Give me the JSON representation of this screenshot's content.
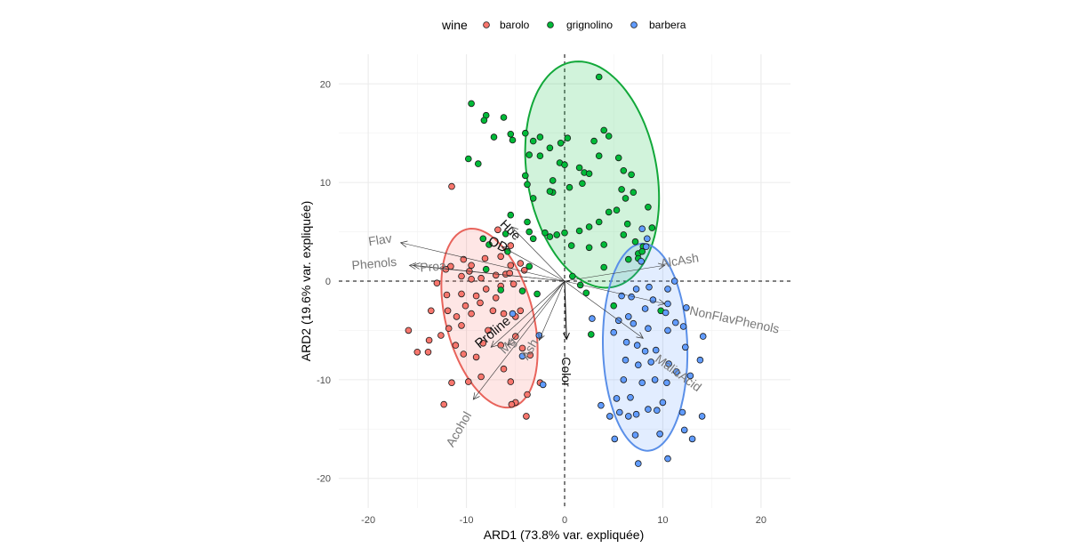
{
  "chart_data": {
    "type": "scatter",
    "xlabel": "ARD1 (73.8% var. expliquée)",
    "ylabel": "ARD2 (19.6% var. expliquée)",
    "xlim": [
      -23,
      23
    ],
    "ylim": [
      -23,
      23
    ],
    "x_ticks": [
      -20,
      -10,
      0,
      10,
      20
    ],
    "y_ticks": [
      -20,
      -10,
      0,
      10,
      20
    ],
    "grid": true,
    "legend": {
      "title": "wine",
      "position": "top"
    },
    "series": [
      {
        "name": "barolo",
        "color": "#F8766D",
        "points": [
          [
            -11.5,
            9.6
          ],
          [
            -6.8,
            5.2
          ],
          [
            -5.5,
            3.6
          ],
          [
            -10.3,
            2.2
          ],
          [
            -11.6,
            1.5
          ],
          [
            -12.1,
            1.2
          ],
          [
            -9.7,
            1.0
          ],
          [
            -9.5,
            1.6
          ],
          [
            -8.1,
            2.3
          ],
          [
            -6.5,
            2.5
          ],
          [
            -10.5,
            0.5
          ],
          [
            -9.5,
            0.2
          ],
          [
            -8.5,
            0.3
          ],
          [
            -13,
            -0.2
          ],
          [
            -7,
            0.6
          ],
          [
            -6.0,
            0.7
          ],
          [
            -5.6,
            0.8
          ],
          [
            -5.5,
            1.6
          ],
          [
            -4.5,
            1.8
          ],
          [
            -4.1,
            1.1
          ],
          [
            -5.2,
            -0.3
          ],
          [
            -6.5,
            -0.5
          ],
          [
            -8,
            -0.8
          ],
          [
            -9,
            -1.5
          ],
          [
            -10.5,
            -1.3
          ],
          [
            -12,
            -1.4
          ],
          [
            -7,
            -1.7
          ],
          [
            -8.6,
            -2.2
          ],
          [
            -10.1,
            -2.5
          ],
          [
            -11.9,
            -3.0
          ],
          [
            -13.6,
            -3.0
          ],
          [
            -11,
            -3.6
          ],
          [
            -9.5,
            -3.3
          ],
          [
            -7.3,
            -3.0
          ],
          [
            -6.2,
            -3.3
          ],
          [
            -5.0,
            -3.6
          ],
          [
            -4.5,
            -3.0
          ],
          [
            -10.5,
            -4.5
          ],
          [
            -11.8,
            -4.8
          ],
          [
            -12.6,
            -5.5
          ],
          [
            -13.8,
            -6.0
          ],
          [
            -15.9,
            -5.0
          ],
          [
            -15,
            -7.2
          ],
          [
            -13.9,
            -7.2
          ],
          [
            -11.1,
            -6.5
          ],
          [
            -10.3,
            -7.4
          ],
          [
            -9.0,
            -7.7
          ],
          [
            -8.3,
            -6.3
          ],
          [
            -7.8,
            -5.0
          ],
          [
            -6.5,
            -6.5
          ],
          [
            -5.0,
            -5.6
          ],
          [
            -4.3,
            -6.8
          ],
          [
            -3.5,
            -7.5
          ],
          [
            -6.2,
            -8.9
          ],
          [
            -8.5,
            -9.7
          ],
          [
            -11.5,
            -10.3
          ],
          [
            -5.5,
            -10.2
          ],
          [
            -2.5,
            -10.3
          ],
          [
            -5.0,
            -12.3
          ],
          [
            -9.8,
            -10.2
          ],
          [
            -3.8,
            -11.5
          ],
          [
            -5.4,
            -12.5
          ],
          [
            -3.9,
            -13.7
          ],
          [
            -12.3,
            -12.5
          ]
        ]
      },
      {
        "name": "grignolino",
        "color": "#00BA38",
        "points": [
          [
            -9.5,
            18.0
          ],
          [
            -8,
            16.8
          ],
          [
            -8.2,
            16.3
          ],
          [
            -6.2,
            16.6
          ],
          [
            -5.5,
            14.9
          ],
          [
            -5.3,
            14.3
          ],
          [
            -7.2,
            14.6
          ],
          [
            -9.8,
            12.4
          ],
          [
            -8.8,
            11.9
          ],
          [
            -4.0,
            15.0
          ],
          [
            -3.2,
            14.2
          ],
          [
            -2.5,
            14.6
          ],
          [
            -1.5,
            13.5
          ],
          [
            -0.4,
            14.0
          ],
          [
            0.3,
            14.5
          ],
          [
            -0.5,
            12.0
          ],
          [
            -2.5,
            12.7
          ],
          [
            -3.6,
            12.8
          ],
          [
            -4.0,
            10.7
          ],
          [
            -3.8,
            9.8
          ],
          [
            -3.2,
            8.4
          ],
          [
            -1.2,
            10.2
          ],
          [
            -1.2,
            9.0
          ],
          [
            -1.5,
            9.1
          ],
          [
            0.0,
            11.8
          ],
          [
            0.5,
            9.5
          ],
          [
            1.5,
            11.5
          ],
          [
            2.0,
            11.0
          ],
          [
            1.8,
            9.9
          ],
          [
            2.5,
            10.9
          ],
          [
            3.5,
            12.7
          ],
          [
            3.0,
            14.2
          ],
          [
            4.0,
            15.3
          ],
          [
            3.5,
            20.7
          ],
          [
            4.5,
            14.7
          ],
          [
            5.5,
            12.5
          ],
          [
            6.0,
            11.2
          ],
          [
            6.8,
            10.8
          ],
          [
            5.8,
            9.3
          ],
          [
            7.0,
            9.0
          ],
          [
            6.2,
            8.4
          ],
          [
            5.3,
            7.2
          ],
          [
            4.5,
            7.0
          ],
          [
            3.5,
            6.0
          ],
          [
            2.5,
            5.5
          ],
          [
            1.5,
            5.1
          ],
          [
            0.0,
            4.9
          ],
          [
            -0.8,
            4.7
          ],
          [
            -1.5,
            4.5
          ],
          [
            -2.0,
            4.9
          ],
          [
            -3.6,
            5.0
          ],
          [
            -6.0,
            4.8
          ],
          [
            -7.7,
            3.7
          ],
          [
            -8.3,
            4.3
          ],
          [
            -5.5,
            6.7
          ],
          [
            -3.8,
            6.0
          ],
          [
            -3.2,
            4.3
          ],
          [
            0.7,
            3.6
          ],
          [
            2.5,
            3.4
          ],
          [
            4.0,
            3.7
          ],
          [
            6.0,
            4.7
          ],
          [
            7.2,
            4.0
          ],
          [
            8.0,
            3.5
          ],
          [
            7.5,
            2.8
          ],
          [
            7.5,
            2.3
          ],
          [
            6.5,
            2.2
          ],
          [
            4.0,
            1.4
          ],
          [
            0.8,
            0.5
          ],
          [
            1.6,
            -0.4
          ],
          [
            2.2,
            -1.2
          ],
          [
            5.0,
            -2.5
          ],
          [
            -4.3,
            -1.0
          ],
          [
            -2.8,
            -1.3
          ],
          [
            -6.5,
            -0.9
          ],
          [
            -5.8,
            3.0
          ],
          [
            -8.0,
            1.2
          ],
          [
            7.9,
            3.0
          ],
          [
            8.9,
            5.4
          ],
          [
            8.5,
            7.5
          ],
          [
            6.4,
            5.8
          ],
          [
            9.8,
            -3.0
          ],
          [
            2.7,
            -5.4
          ],
          [
            -3.6,
            1.5
          ]
        ]
      },
      {
        "name": "barbera",
        "color": "#619CFF",
        "points": [
          [
            7.9,
            5.3
          ],
          [
            8.4,
            4.3
          ],
          [
            8.3,
            3.5
          ],
          [
            7.8,
            2.0
          ],
          [
            11.2,
            0.0
          ],
          [
            10.5,
            -0.8
          ],
          [
            8.6,
            -0.6
          ],
          [
            7.3,
            -0.8
          ],
          [
            5.8,
            -1.5
          ],
          [
            6.8,
            -1.6
          ],
          [
            9.0,
            -1.9
          ],
          [
            8.2,
            -2.8
          ],
          [
            10.5,
            -2.3
          ],
          [
            10.3,
            -3.2
          ],
          [
            12.4,
            -2.7
          ],
          [
            12.1,
            -4.6
          ],
          [
            14.1,
            -5.6
          ],
          [
            12.3,
            -6.7
          ],
          [
            10.5,
            -5.0
          ],
          [
            11.3,
            -4.2
          ],
          [
            8.5,
            -4.8
          ],
          [
            7.0,
            -4.3
          ],
          [
            6.5,
            -3.6
          ],
          [
            5.5,
            -4.0
          ],
          [
            5.0,
            -5.2
          ],
          [
            6.3,
            -6.2
          ],
          [
            7.4,
            -6.5
          ],
          [
            8.2,
            -7.1
          ],
          [
            9.3,
            -7.0
          ],
          [
            7.5,
            -8.5
          ],
          [
            6.2,
            -8.0
          ],
          [
            8.8,
            -8.2
          ],
          [
            10.6,
            -8.4
          ],
          [
            11.4,
            -9.2
          ],
          [
            12.8,
            -9.6
          ],
          [
            13.8,
            -8.0
          ],
          [
            10.4,
            -10.3
          ],
          [
            9.2,
            -10.0
          ],
          [
            7.9,
            -10.3
          ],
          [
            6.7,
            -11.8
          ],
          [
            6.0,
            -10.0
          ],
          [
            5.3,
            -11.9
          ],
          [
            4.6,
            -13.7
          ],
          [
            5.6,
            -13.3
          ],
          [
            6.5,
            -13.7
          ],
          [
            7.3,
            -13.5
          ],
          [
            8.5,
            -13.0
          ],
          [
            9.4,
            -13.1
          ],
          [
            10.0,
            -12.3
          ],
          [
            12.0,
            -13.3
          ],
          [
            14.0,
            -13.7
          ],
          [
            12.2,
            -15.1
          ],
          [
            9.7,
            -15.5
          ],
          [
            7.2,
            -15.6
          ],
          [
            5.1,
            -16.0
          ],
          [
            7.5,
            -18.5
          ],
          [
            10.5,
            -18.0
          ],
          [
            13.0,
            -16.0
          ],
          [
            3.7,
            -12.6
          ],
          [
            2.8,
            -3.8
          ],
          [
            -2.2,
            -10.5
          ],
          [
            -2.6,
            -5.5
          ],
          [
            -5.3,
            -3.3
          ],
          [
            -4.3,
            -7.6
          ]
        ]
      }
    ],
    "ellipses": [
      {
        "series": "barolo",
        "cx": -7.65,
        "cy": -3.75,
        "rx": 9.3,
        "ry": 4.45,
        "angle_deg": 104.6
      },
      {
        "series": "grignolino",
        "cx": 2.8,
        "cy": 10.8,
        "rx": 11.6,
        "ry": 6.6,
        "angle_deg": 100.3
      },
      {
        "series": "barbera",
        "cx": 8.2,
        "cy": -6.7,
        "rx": 10.5,
        "ry": 4.3,
        "angle_deg": 91.6
      }
    ],
    "variables": [
      {
        "name": "Flav",
        "x": -16.7,
        "y": 3.9,
        "label_x": -18.8,
        "label_y": 4.2,
        "angle": -9
      },
      {
        "name": "Phenols",
        "x": -15.4,
        "y": 1.6,
        "label_x": -19.4,
        "label_y": 1.8,
        "angle": -5
      },
      {
        "name": "Proa",
        "x": -15.8,
        "y": 1.6,
        "label_x": -13.4,
        "label_y": 1.5,
        "angle": -5
      },
      {
        "name": "Hue",
        "x": -5.4,
        "y": 5.5,
        "label_x": -5.5,
        "label_y": 5.2,
        "angle": 45
      },
      {
        "name": "OD",
        "x": -6.4,
        "y": 3.5,
        "label_x": -6.8,
        "label_y": 3.7,
        "angle": 27
      },
      {
        "name": "AlcAsh",
        "x": 10.2,
        "y": 1.6,
        "label_x": 11.7,
        "label_y": 2.1,
        "angle": -9
      },
      {
        "name": "NonFlavPhenols",
        "x": 10.2,
        "y": -2.3,
        "label_x": 17.3,
        "label_y": -3.9,
        "angle": 12
      },
      {
        "name": "MalicAcid",
        "x": 8.0,
        "y": -5.8,
        "label_x": 11.6,
        "label_y": -9.3,
        "angle": 36
      },
      {
        "name": "Color",
        "x": 0.2,
        "y": -5.9,
        "label_x": 0.2,
        "label_y": -9.2,
        "angle": 90
      },
      {
        "name": "Ash",
        "x": -2.6,
        "y": -6.0,
        "label_x": -3.6,
        "label_y": -6.9,
        "angle": -60
      },
      {
        "name": "Mg",
        "x": -5.8,
        "y": -6.5,
        "label_x": -5.8,
        "label_y": -6.5,
        "angle": -45
      },
      {
        "name": "Proline",
        "x": -7.5,
        "y": -6.7,
        "label_x": -7.3,
        "label_y": -5.2,
        "angle": -40
      },
      {
        "name": "Acohol",
        "x": -9.3,
        "y": -12.0,
        "label_x": -10.8,
        "label_y": -15.0,
        "angle": -60
      }
    ]
  }
}
